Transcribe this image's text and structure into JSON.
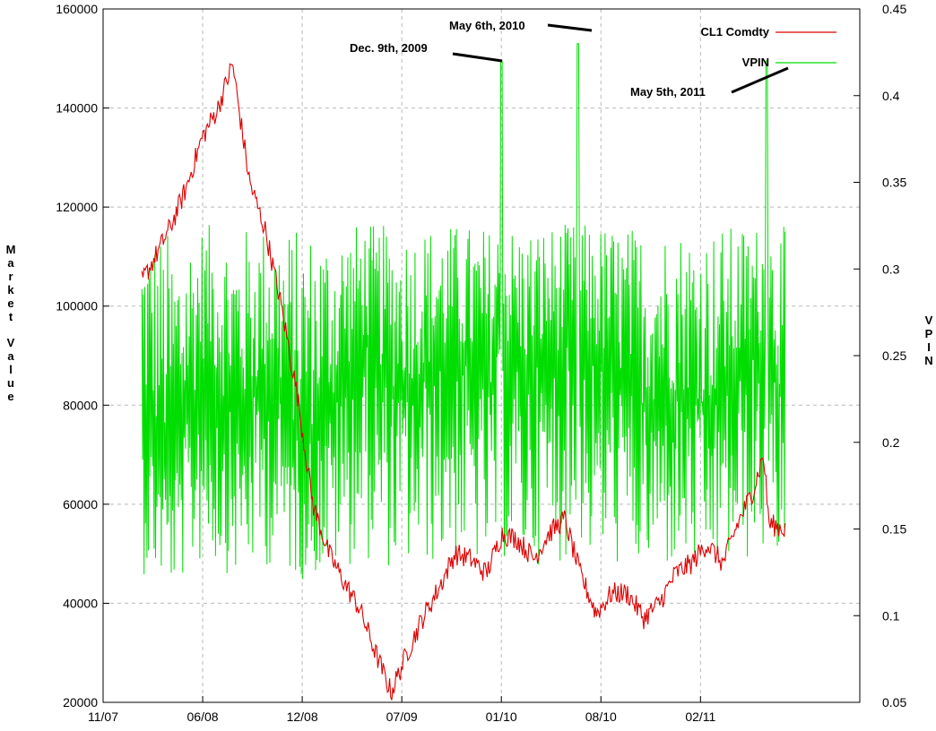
{
  "chart_data": {
    "type": "line",
    "x_tick_labels": [
      "11/07",
      "06/08",
      "12/08",
      "07/09",
      "01/10",
      "08/10",
      "02/11"
    ],
    "xlabel": "",
    "y_left": {
      "label": "Market Value",
      "ylim": [
        20000,
        160000
      ],
      "ticks": [
        20000,
        40000,
        60000,
        80000,
        100000,
        120000,
        140000,
        160000
      ]
    },
    "y_right": {
      "label": "VPIN",
      "ylim": [
        0.05,
        0.45
      ],
      "ticks": [
        0.05,
        0.1,
        0.15,
        0.2,
        0.25,
        0.3,
        0.35,
        0.4,
        0.45
      ],
      "tick_labels": [
        "0.05",
        "0.1",
        "0.15",
        "0.2",
        "0.25",
        "0.3",
        "0.35",
        "0.4",
        "0.45"
      ]
    },
    "grid": true,
    "legend_position": "top-right",
    "series": [
      {
        "name": "CL1 Comdty",
        "axis": "left",
        "color": "#dd0000",
        "x": [
          "2008-01-15",
          "2008-02-10",
          "2008-03-10",
          "2008-04-10",
          "2008-05-10",
          "2008-06-10",
          "2008-07-08",
          "2008-07-20",
          "2008-08-10",
          "2008-09-10",
          "2008-10-10",
          "2008-11-10",
          "2008-12-10",
          "2009-01-10",
          "2009-02-15",
          "2009-03-10",
          "2009-04-10",
          "2009-05-10",
          "2009-06-10",
          "2009-07-10",
          "2009-08-10",
          "2009-09-10",
          "2009-10-10",
          "2009-11-10",
          "2009-12-10",
          "2010-01-08",
          "2010-02-10",
          "2010-03-10",
          "2010-04-10",
          "2010-05-10",
          "2010-06-10",
          "2010-07-10",
          "2010-08-10",
          "2010-09-10",
          "2010-10-10",
          "2010-11-10",
          "2010-12-10",
          "2011-01-10",
          "2011-02-10",
          "2011-03-10",
          "2011-04-10",
          "2011-04-29",
          "2011-05-10",
          "2011-06-10"
        ],
        "values": [
          105000,
          110000,
          116000,
          124000,
          134000,
          140000,
          149000,
          140000,
          125000,
          115000,
          100000,
          82000,
          60000,
          50000,
          43000,
          39000,
          30000,
          22000,
          30000,
          37000,
          43000,
          50000,
          49000,
          46000,
          54000,
          53000,
          49000,
          54000,
          57000,
          46000,
          38000,
          42000,
          42000,
          37000,
          40000,
          46000,
          48000,
          52000,
          48000,
          56000,
          63000,
          70000,
          56000,
          55000
        ]
      },
      {
        "name": "VPIN",
        "axis": "right",
        "color": "#00dd00",
        "x": [
          "2008-01-15",
          "2008-03-15",
          "2008-05-15",
          "2008-07-15",
          "2008-09-15",
          "2008-11-15",
          "2009-01-15",
          "2009-03-15",
          "2009-05-15",
          "2009-07-15",
          "2009-09-15",
          "2009-11-15",
          "2009-12-09",
          "2010-01-15",
          "2010-03-15",
          "2010-05-06",
          "2010-07-15",
          "2010-09-15",
          "2010-11-15",
          "2011-01-15",
          "2011-03-15",
          "2011-05-05",
          "2011-06-10"
        ],
        "values": [
          0.22,
          0.18,
          0.25,
          0.21,
          0.24,
          0.2,
          0.22,
          0.26,
          0.23,
          0.24,
          0.25,
          0.23,
          0.42,
          0.24,
          0.25,
          0.43,
          0.24,
          0.22,
          0.23,
          0.22,
          0.24,
          0.42,
          0.22
        ],
        "range_low": 0.1,
        "range_high": 0.33
      }
    ],
    "annotations": [
      {
        "text": "May 6th, 2010",
        "x": "2010-05-06",
        "y": 0.43
      },
      {
        "text": "Dec. 9th, 2009",
        "x": "2009-12-09",
        "y": 0.42
      },
      {
        "text": "May 5th, 2011",
        "x": "2011-05-05",
        "y": 0.42
      }
    ]
  }
}
